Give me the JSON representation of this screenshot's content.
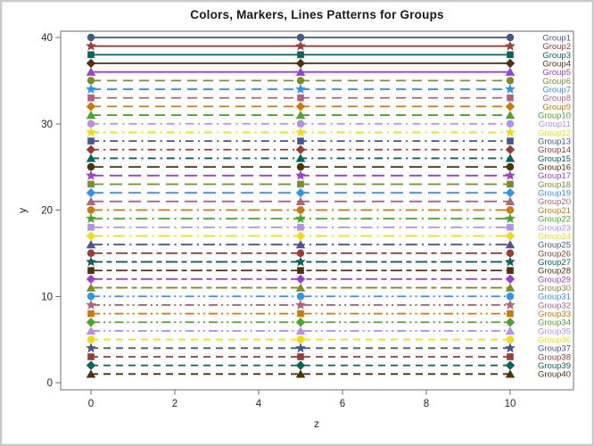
{
  "chart_data": {
    "type": "line",
    "title": "Colors, Markers, Lines Patterns for Groups",
    "xlabel": "z",
    "ylabel": "y",
    "x_ticks": [
      0,
      2,
      4,
      6,
      8,
      10
    ],
    "y_ticks": [
      0,
      10,
      20,
      30,
      40
    ],
    "xlim": [
      -0.7,
      11.5
    ],
    "ylim": [
      -1.3,
      40.7
    ],
    "grid": false,
    "legend_position": "curve-labels-right",
    "x": [
      0,
      5,
      10
    ],
    "series": [
      {
        "name": "Group1",
        "y": 40,
        "color": "#445694",
        "marker": "circle",
        "pattern": "solid"
      },
      {
        "name": "Group2",
        "y": 39,
        "color": "#A23A2E",
        "marker": "star",
        "pattern": "solid"
      },
      {
        "name": "Group3",
        "y": 38,
        "color": "#01665E",
        "marker": "square",
        "pattern": "solid"
      },
      {
        "name": "Group4",
        "y": 37,
        "color": "#543005",
        "marker": "diamond",
        "pattern": "solid"
      },
      {
        "name": "Group5",
        "y": 36,
        "color": "#9D3CDB",
        "marker": "triangle",
        "pattern": "solid"
      },
      {
        "name": "Group6",
        "y": 35,
        "color": "#7F8E1F",
        "marker": "circle",
        "pattern": "dash"
      },
      {
        "name": "Group7",
        "y": 34,
        "color": "#2597FA",
        "marker": "star",
        "pattern": "dash"
      },
      {
        "name": "Group8",
        "y": 33,
        "color": "#B26084",
        "marker": "square",
        "pattern": "dash"
      },
      {
        "name": "Group9",
        "y": 32,
        "color": "#D17800",
        "marker": "diamond",
        "pattern": "dash"
      },
      {
        "name": "Group10",
        "y": 31,
        "color": "#47A82A",
        "marker": "triangle",
        "pattern": "dash"
      },
      {
        "name": "Group11",
        "y": 30,
        "color": "#B38EF3",
        "marker": "circle",
        "pattern": "dashdot"
      },
      {
        "name": "Group12",
        "y": 29,
        "color": "#F9DA04",
        "marker": "star",
        "pattern": "dashdot"
      },
      {
        "name": "Group13",
        "y": 28,
        "color": "#445694",
        "marker": "square",
        "pattern": "dashdot"
      },
      {
        "name": "Group14",
        "y": 27,
        "color": "#A23A2E",
        "marker": "diamond",
        "pattern": "dashdot"
      },
      {
        "name": "Group15",
        "y": 26,
        "color": "#01665E",
        "marker": "triangle",
        "pattern": "dashdot"
      },
      {
        "name": "Group16",
        "y": 25,
        "color": "#543005",
        "marker": "circle",
        "pattern": "longdash"
      },
      {
        "name": "Group17",
        "y": 24,
        "color": "#9D3CDB",
        "marker": "star",
        "pattern": "longdash"
      },
      {
        "name": "Group18",
        "y": 23,
        "color": "#7F8E1F",
        "marker": "square",
        "pattern": "longdash"
      },
      {
        "name": "Group19",
        "y": 22,
        "color": "#2597FA",
        "marker": "diamond",
        "pattern": "longdash"
      },
      {
        "name": "Group20",
        "y": 21,
        "color": "#B26084",
        "marker": "triangle",
        "pattern": "longdash"
      },
      {
        "name": "Group21",
        "y": 20,
        "color": "#D17800",
        "marker": "circle",
        "pattern": "longdashdot"
      },
      {
        "name": "Group22",
        "y": 19,
        "color": "#47A82A",
        "marker": "star",
        "pattern": "longdashdot"
      },
      {
        "name": "Group23",
        "y": 18,
        "color": "#B38EF3",
        "marker": "square",
        "pattern": "longdashdot"
      },
      {
        "name": "Group24",
        "y": 17,
        "color": "#F9DA04",
        "marker": "diamond",
        "pattern": "longdashdot"
      },
      {
        "name": "Group25",
        "y": 16,
        "color": "#445694",
        "marker": "triangle",
        "pattern": "longdashdot"
      },
      {
        "name": "Group26",
        "y": 15,
        "color": "#A23A2E",
        "marker": "circle",
        "pattern": "longdashshortdash"
      },
      {
        "name": "Group27",
        "y": 14,
        "color": "#01665E",
        "marker": "star",
        "pattern": "longdashshortdash"
      },
      {
        "name": "Group28",
        "y": 13,
        "color": "#543005",
        "marker": "square",
        "pattern": "longdashshortdash"
      },
      {
        "name": "Group29",
        "y": 12,
        "color": "#9D3CDB",
        "marker": "diamond",
        "pattern": "longdashshortdash"
      },
      {
        "name": "Group30",
        "y": 11,
        "color": "#7F8E1F",
        "marker": "triangle",
        "pattern": "longdashshortdash"
      },
      {
        "name": "Group31",
        "y": 10,
        "color": "#2597FA",
        "marker": "circle",
        "pattern": "dashdotdot"
      },
      {
        "name": "Group32",
        "y": 9,
        "color": "#B26084",
        "marker": "star",
        "pattern": "dashdotdot"
      },
      {
        "name": "Group33",
        "y": 8,
        "color": "#D17800",
        "marker": "square",
        "pattern": "dashdotdot"
      },
      {
        "name": "Group34",
        "y": 7,
        "color": "#47A82A",
        "marker": "diamond",
        "pattern": "dashdotdot"
      },
      {
        "name": "Group35",
        "y": 6,
        "color": "#B38EF3",
        "marker": "triangle",
        "pattern": "dashdotdot"
      },
      {
        "name": "Group36",
        "y": 5,
        "color": "#F9DA04",
        "marker": "circle",
        "pattern": "mediumdash"
      },
      {
        "name": "Group37",
        "y": 4,
        "color": "#445694",
        "marker": "star",
        "pattern": "mediumdash"
      },
      {
        "name": "Group38",
        "y": 3,
        "color": "#A23A2E",
        "marker": "square",
        "pattern": "mediumdash"
      },
      {
        "name": "Group39",
        "y": 2,
        "color": "#01665E",
        "marker": "diamond",
        "pattern": "mediumdash"
      },
      {
        "name": "Group40",
        "y": 1,
        "color": "#543005",
        "marker": "triangle",
        "pattern": "mediumdash"
      }
    ],
    "axis_colors": {
      "line": "#6e6e6e",
      "tick_text": "#262626"
    }
  }
}
